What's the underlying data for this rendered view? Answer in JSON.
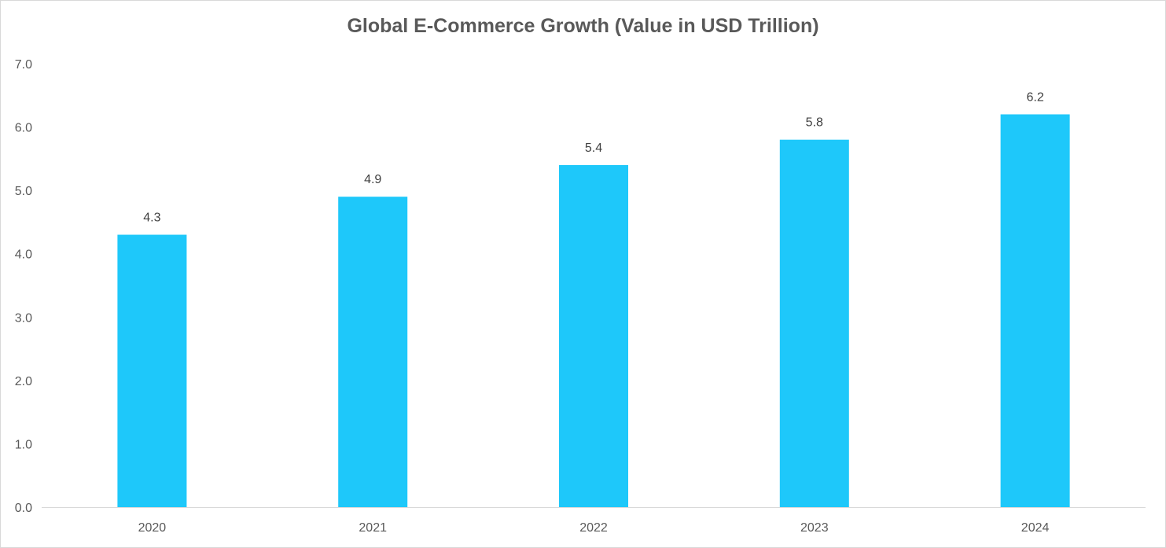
{
  "chart_data": {
    "type": "bar",
    "title": "Global E-Commerce Growth (Value in USD Trillion)",
    "categories": [
      "2020",
      "2021",
      "2022",
      "2023",
      "2024"
    ],
    "values": [
      4.3,
      4.9,
      5.4,
      5.8,
      6.2
    ],
    "data_labels": [
      "4.3",
      "4.9",
      "5.4",
      "5.8",
      "6.2"
    ],
    "y_ticks": [
      "0.0",
      "1.0",
      "2.0",
      "3.0",
      "4.0",
      "5.0",
      "6.0",
      "7.0"
    ],
    "ylim": [
      0,
      7
    ],
    "grid": false,
    "legend": "none",
    "bar_color": "#1ec8fa",
    "axis_color": "#d9d9d9"
  }
}
